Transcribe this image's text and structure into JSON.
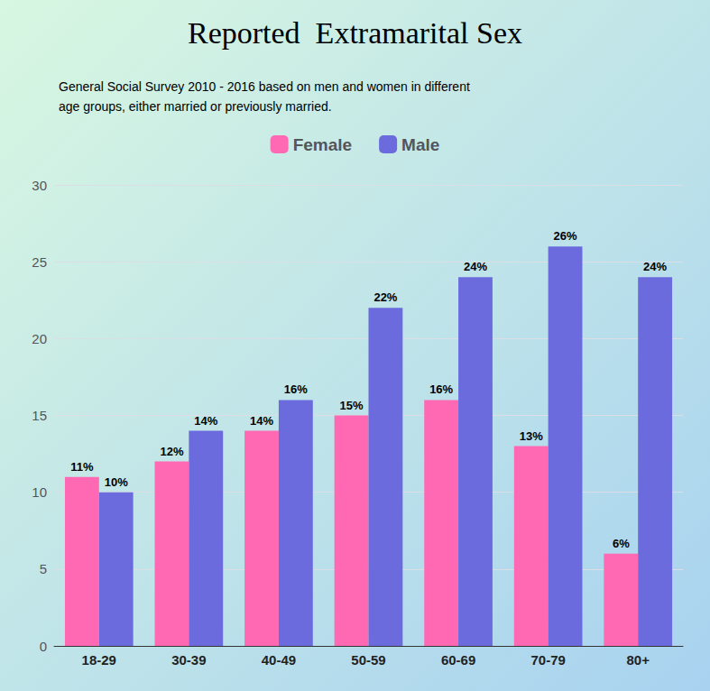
{
  "chart_data": {
    "type": "bar",
    "title": "Reported  Extramarital Sex",
    "subtitle": "General Social Survey 2010 - 2016 based on men and women in different\nage groups, either married or previously married.",
    "categories": [
      "18-29",
      "30-39",
      "40-49",
      "50-59",
      "60-69",
      "70-79",
      "80+"
    ],
    "series": [
      {
        "name": "Female",
        "color": "#FF69B4",
        "values": [
          11,
          12,
          14,
          15,
          16,
          13,
          6
        ],
        "value_labels": [
          "11%",
          "12%",
          "14%",
          "15%",
          "16%",
          "13%",
          "6%"
        ]
      },
      {
        "name": "Male",
        "color": "#6B6BDD",
        "values": [
          10,
          14,
          16,
          22,
          24,
          26,
          24
        ],
        "value_labels": [
          "10%",
          "14%",
          "16%",
          "22%",
          "24%",
          "26%",
          "24%"
        ]
      }
    ],
    "ylim": [
      0,
      30
    ],
    "yticks": [
      0,
      5,
      10,
      15,
      20,
      25,
      30
    ],
    "grid": true,
    "legend": "top",
    "data_labels": true
  }
}
